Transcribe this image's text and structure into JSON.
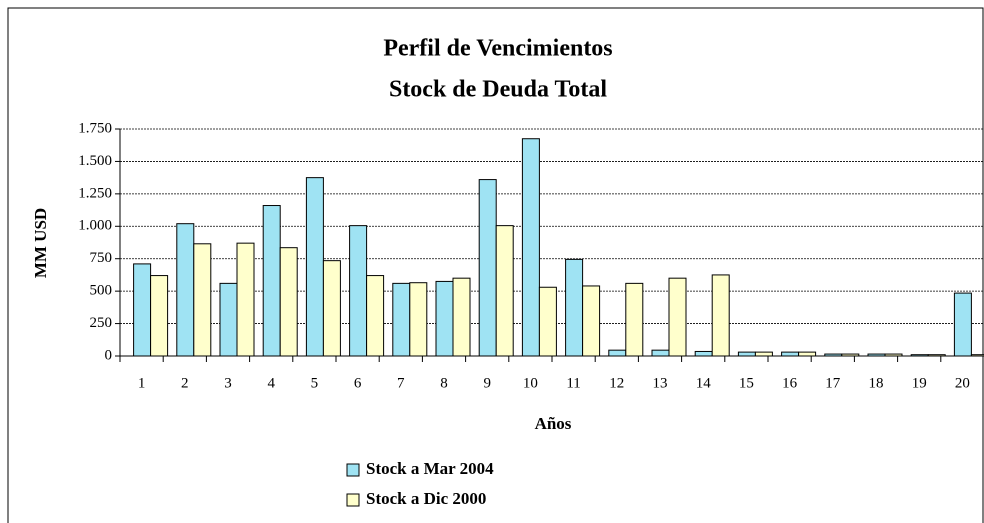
{
  "chart_data": {
    "type": "bar",
    "title": "Perfil de Vencimientos",
    "subtitle": "Stock de Deuda Total",
    "y_label": "MM USD",
    "x_label": "Años",
    "categories": [
      "1",
      "2",
      "3",
      "4",
      "5",
      "6",
      "7",
      "8",
      "9",
      "10",
      "11",
      "12",
      "13",
      "14",
      "15",
      "16",
      "17",
      "18",
      "19",
      "20"
    ],
    "series": [
      {
        "name": "Stock a Mar 2004",
        "color": "#9fe3f3",
        "values": [
          710,
          1020,
          560,
          1160,
          1375,
          1005,
          560,
          575,
          1360,
          1675,
          745,
          45,
          45,
          35,
          30,
          30,
          15,
          15,
          10,
          485
        ]
      },
      {
        "name": "Stock a Dic 2000",
        "color": "#ffffcc",
        "values": [
          620,
          865,
          870,
          835,
          735,
          620,
          565,
          600,
          1005,
          530,
          540,
          560,
          600,
          625,
          30,
          30,
          15,
          15,
          10,
          10
        ]
      }
    ],
    "ylim": [
      0,
      1750
    ],
    "yticks": [
      0,
      250,
      500,
      750,
      {
        "value": 1000,
        "label": "1.000"
      },
      {
        "value": 1250,
        "label": "1.250"
      },
      {
        "value": 1500,
        "label": "1.500"
      },
      {
        "value": 1750,
        "label": "1.750"
      }
    ],
    "grid": true
  }
}
